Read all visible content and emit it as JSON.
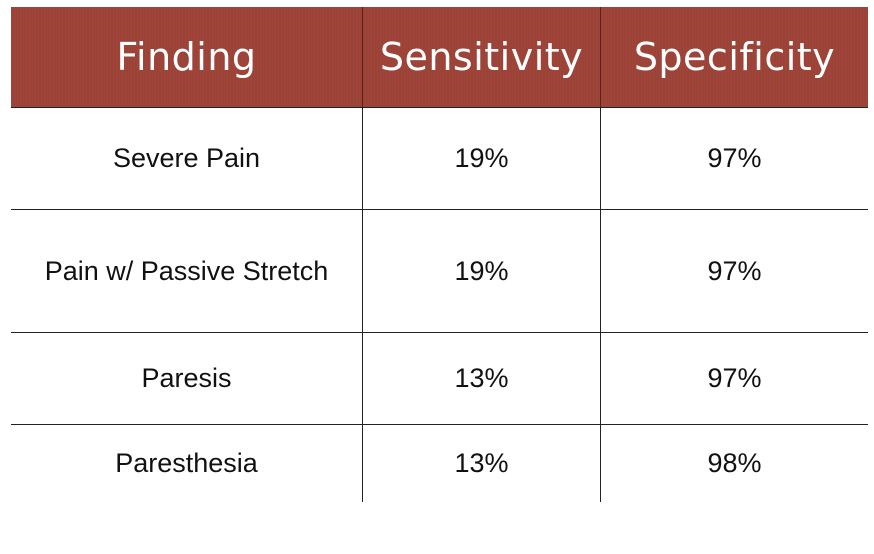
{
  "table": {
    "headers": [
      "Finding",
      "Sensitivity",
      "Specificity"
    ],
    "rows": [
      [
        "Severe Pain",
        "19%",
        "97%"
      ],
      [
        "Pain w/ Passive Stretch",
        "19%",
        "97%"
      ],
      [
        "Paresis",
        "13%",
        "97%"
      ],
      [
        "Paresthesia",
        "13%",
        "98%"
      ]
    ]
  },
  "colors": {
    "header_bg": "#9c4237",
    "header_text": "#ffffff",
    "body_text": "#111111",
    "grid": "#222222"
  }
}
